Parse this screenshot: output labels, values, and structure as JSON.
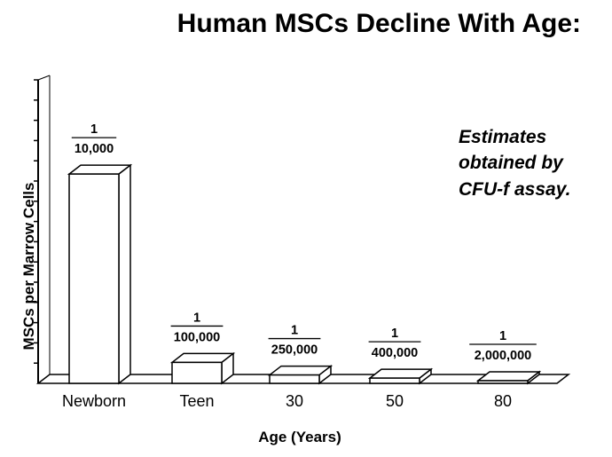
{
  "chart_data": {
    "type": "bar",
    "title": "Human MSCs Decline With Age:",
    "xlabel": "Age (Years)",
    "ylabel": "MSCs per Marrow Cells",
    "categories": [
      "Newborn",
      "Teen",
      "30",
      "50",
      "80"
    ],
    "values": [
      0.0001,
      1e-05,
      4e-06,
      2.5e-06,
      5e-07
    ],
    "data_labels": [
      {
        "numerator": "1",
        "denominator": "10,000"
      },
      {
        "numerator": "1",
        "denominator": "100,000"
      },
      {
        "numerator": "1",
        "denominator": "250,000"
      },
      {
        "numerator": "1",
        "denominator": "400,000"
      },
      {
        "numerator": "1",
        "denominator": "2,000,000"
      }
    ],
    "annotation": [
      "Estimates",
      "obtained by",
      "CFU-f assay."
    ],
    "ylim": [
      0,
      0.000145
    ],
    "style": "3d",
    "bar_color": "#ffffff",
    "line_color": "#000000"
  }
}
